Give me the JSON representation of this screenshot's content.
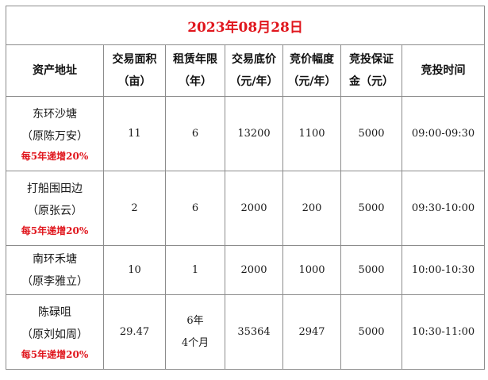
{
  "title": "2023年08月28日",
  "headers": [
    {
      "lines": [
        "资产地址"
      ]
    },
    {
      "lines": [
        "交易面积",
        "（亩）"
      ]
    },
    {
      "lines": [
        "租赁年限",
        "（年）"
      ]
    },
    {
      "lines": [
        "交易底价",
        "（元/年）"
      ]
    },
    {
      "lines": [
        "竞价幅度",
        "（元/年）"
      ]
    },
    {
      "lines": [
        "竞投保证",
        "金（元）"
      ]
    },
    {
      "lines": [
        "竞投时间"
      ]
    }
  ],
  "rows": [
    {
      "address": [
        "东环沙塘",
        "（原陈万安）"
      ],
      "note": "每5年递增20%",
      "area": "11",
      "term": [
        "6"
      ],
      "base_price": "13200",
      "increment": "1100",
      "deposit": "5000",
      "time": "09:00-09:30"
    },
    {
      "address": [
        "打船围田边",
        "（原张云）"
      ],
      "note": "每5年递增20%",
      "area": "2",
      "term": [
        "6"
      ],
      "base_price": "2000",
      "increment": "200",
      "deposit": "5000",
      "time": "09:30-10:00"
    },
    {
      "address": [
        "南环禾塘",
        "（原李雅立）"
      ],
      "note": "",
      "area": "10",
      "term": [
        "1"
      ],
      "base_price": "2000",
      "increment": "1000",
      "deposit": "5000",
      "time": "10:00-10:30"
    },
    {
      "address": [
        "陈碌咀",
        "（原刘如周）"
      ],
      "note": "每5年递增20%",
      "area": "29.47",
      "term": [
        "6年",
        "4个月"
      ],
      "base_price": "35364",
      "increment": "2947",
      "deposit": "5000",
      "time": "10:30-11:00"
    }
  ]
}
